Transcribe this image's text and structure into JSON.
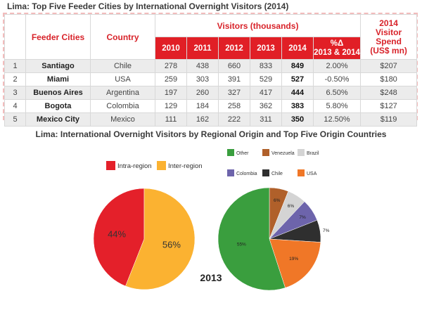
{
  "table": {
    "title": "Lima: Top Five Feeder Cities by International Overnight Visitors (2014)",
    "headers": {
      "feeder_cities": "Feeder Cities",
      "country": "Country",
      "visitors": "Visitors (thousands)",
      "years": [
        "2010",
        "2011",
        "2012",
        "2013",
        "2014"
      ],
      "pct_change_line1": "%Δ",
      "pct_change_line2": "2013 & 2014",
      "spend_line1": "2014",
      "spend_line2": "Visitor",
      "spend_line3": "Spend",
      "spend_line4": "(US$ mn)"
    },
    "rows": [
      {
        "rank": "1",
        "city": "Santiago",
        "country": "Chile",
        "v2010": "278",
        "v2011": "438",
        "v2012": "660",
        "v2013": "833",
        "v2014": "849",
        "pct": "2.00%",
        "spend": "$207"
      },
      {
        "rank": "2",
        "city": "Miami",
        "country": "USA",
        "v2010": "259",
        "v2011": "303",
        "v2012": "391",
        "v2013": "529",
        "v2014": "527",
        "pct": "-0.50%",
        "spend": "$180"
      },
      {
        "rank": "3",
        "city": "Buenos Aires",
        "country": "Argentina",
        "v2010": "197",
        "v2011": "260",
        "v2012": "327",
        "v2013": "417",
        "v2014": "444",
        "pct": "6.50%",
        "spend": "$248"
      },
      {
        "rank": "4",
        "city": "Bogota",
        "country": "Colombia",
        "v2010": "129",
        "v2011": "184",
        "v2012": "258",
        "v2013": "362",
        "v2014": "383",
        "pct": "5.80%",
        "spend": "$127"
      },
      {
        "rank": "5",
        "city": "Mexico City",
        "country": "Mexico",
        "v2010": "111",
        "v2011": "162",
        "v2012": "222",
        "v2013": "311",
        "v2014": "350",
        "pct": "12.50%",
        "spend": "$119"
      }
    ]
  },
  "charts_title": "Lima: International Overnight Visitors by Regional Origin and Top Five Origin Countries",
  "year_label": "2013",
  "chart_data": [
    {
      "type": "pie",
      "title": "",
      "labels": [
        "Intra-region",
        "Inter-region"
      ],
      "values": [
        44,
        56
      ],
      "value_labels": [
        "44%",
        "56%"
      ],
      "colors": [
        "#e4202a",
        "#fbb231"
      ],
      "legend": "top"
    },
    {
      "type": "pie",
      "title": "",
      "labels": [
        "Venezuela",
        "Brazil",
        "Colombia",
        "Chile",
        "USA",
        "Other"
      ],
      "values": [
        6,
        6,
        7,
        7,
        19,
        55
      ],
      "value_labels": [
        "6%",
        "6%",
        "7%",
        "7%",
        "19%",
        "55%"
      ],
      "colors": [
        "#b0602a",
        "#d4d4d4",
        "#6d64ab",
        "#2f2f2f",
        "#f07727",
        "#3a9e3e"
      ],
      "legend_order": [
        "Other",
        "Venezuela",
        "Brazil",
        "Colombia",
        "Chile",
        "USA"
      ],
      "legend": "top"
    }
  ]
}
